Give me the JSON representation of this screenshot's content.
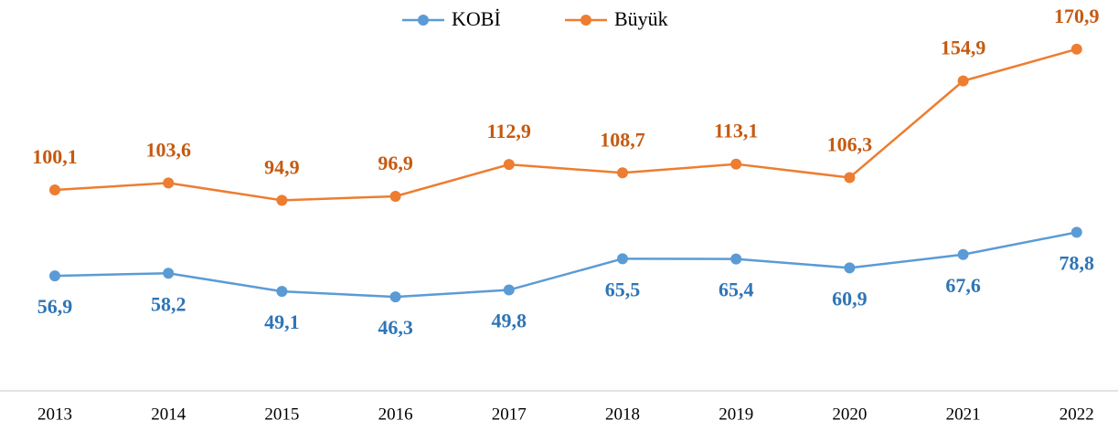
{
  "chart_data": {
    "type": "line",
    "categories": [
      "2013",
      "2014",
      "2015",
      "2016",
      "2017",
      "2018",
      "2019",
      "2020",
      "2021",
      "2022"
    ],
    "series": [
      {
        "name": "KOBİ",
        "color": "#5b9bd5",
        "label_color": "#2e75b6",
        "values": [
          56.9,
          58.2,
          49.1,
          46.3,
          49.8,
          65.5,
          65.4,
          60.9,
          67.6,
          78.8
        ],
        "value_labels": [
          "56,9",
          "58,2",
          "49,1",
          "46,3",
          "49,8",
          "65,5",
          "65,4",
          "60,9",
          "67,6",
          "78,8"
        ]
      },
      {
        "name": "Büyük",
        "color": "#ed7d31",
        "label_color": "#c55a11",
        "values": [
          100.1,
          103.6,
          94.9,
          96.9,
          112.9,
          108.7,
          113.1,
          106.3,
          154.9,
          170.9
        ],
        "value_labels": [
          "100,1",
          "103,6",
          "94,9",
          "96,9",
          "112,9",
          "108,7",
          "113,1",
          "106,3",
          "154,9",
          "170,9"
        ]
      }
    ],
    "ylim": [
      0,
      180
    ],
    "legend": "top",
    "grid": false
  }
}
